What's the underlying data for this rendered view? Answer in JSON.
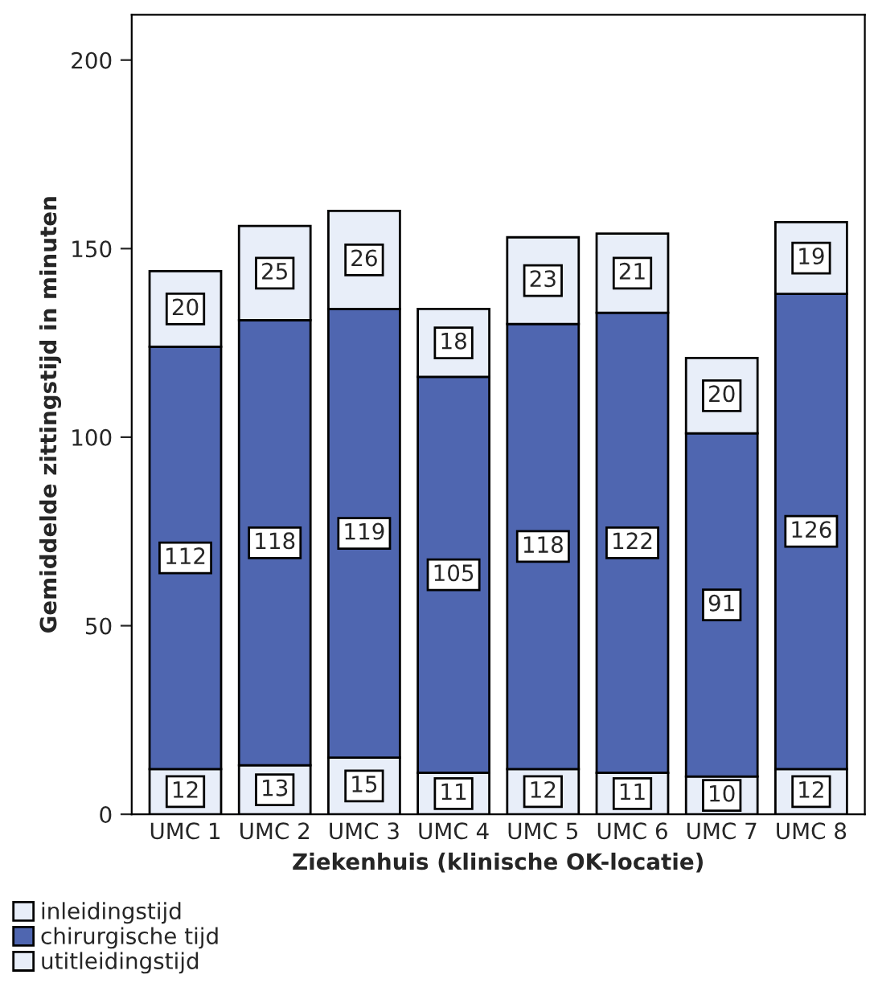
{
  "chart_data": {
    "type": "bar",
    "stacked": true,
    "xlabel": "Ziekenhuis (klinische OK-locatie)",
    "ylabel": "Gemiddelde zittingstijd in minuten",
    "categories": [
      "UMC 1",
      "UMC 2",
      "UMC 3",
      "UMC 4",
      "UMC 5",
      "UMC 6",
      "UMC 7",
      "UMC 8"
    ],
    "series": [
      {
        "name": "inleidingstijd",
        "color": "#e8eef9",
        "values": [
          12,
          13,
          15,
          11,
          12,
          11,
          10,
          12
        ]
      },
      {
        "name": "chirurgische tijd",
        "color": "#4f66b0",
        "values": [
          112,
          118,
          119,
          105,
          118,
          122,
          91,
          126
        ]
      },
      {
        "name": "utitleidingstijd",
        "color": "#e8eef9",
        "values": [
          20,
          25,
          26,
          18,
          23,
          21,
          20,
          19
        ]
      }
    ],
    "ylim": [
      0,
      212
    ],
    "yticks": [
      0,
      50,
      100,
      150,
      200
    ],
    "data_labels": true,
    "legend": "bottom left",
    "grid": false
  }
}
